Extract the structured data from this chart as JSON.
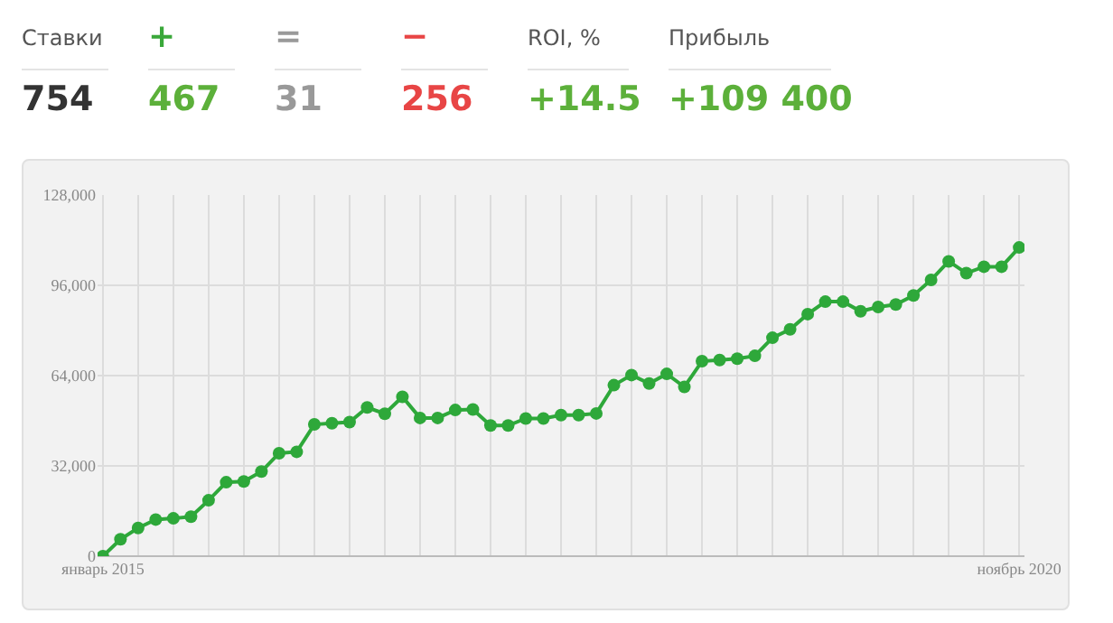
{
  "chart_data": {
    "type": "line",
    "annotations": [
      "Ставки",
      "754",
      "+",
      "467",
      "=",
      "31",
      "−",
      "256",
      "ROI, %",
      "+14.5",
      "Прибыль",
      "+109 400"
    ],
    "categories": [
      "январь 2015",
      null,
      null,
      null,
      null,
      null,
      null,
      null,
      null,
      null,
      null,
      null,
      null,
      null,
      null,
      null,
      null,
      null,
      null,
      null,
      null,
      null,
      null,
      null,
      null,
      null,
      null,
      null,
      null,
      null,
      null,
      null,
      null,
      null,
      null,
      null,
      null,
      null,
      null,
      null,
      null,
      null,
      null,
      null,
      null,
      null,
      null,
      null,
      null,
      null,
      null,
      null,
      "ноябрь 2020"
    ],
    "series": [
      {
        "color": "#2ea83a",
        "values": [
          0,
          6000,
          10000,
          13000,
          13400,
          14000,
          19800,
          26200,
          26500,
          30000,
          36500,
          37000,
          46700,
          47100,
          47500,
          52700,
          50500,
          56500,
          49000,
          49000,
          51800,
          52000,
          46300,
          46300,
          48800,
          48800,
          50000,
          50000,
          50600,
          60600,
          64200,
          61200,
          64600,
          60000,
          69100,
          69500,
          70000,
          71000,
          77400,
          80400,
          85800,
          90200,
          90200,
          86800,
          88300,
          89200,
          92400,
          97900,
          104500,
          100300,
          102600,
          102600,
          109400
        ]
      }
    ],
    "ylim": [
      0,
      128000
    ],
    "yticks": [
      {
        "value": 0,
        "label": "0"
      },
      {
        "value": 32000,
        "label": "32,000"
      },
      {
        "value": 64000,
        "label": "64,000"
      },
      {
        "value": 96000,
        "label": "96,000"
      },
      {
        "value": 128000,
        "label": "128,000"
      }
    ],
    "grid": true,
    "marker": "circle",
    "line_style": "solid"
  }
}
